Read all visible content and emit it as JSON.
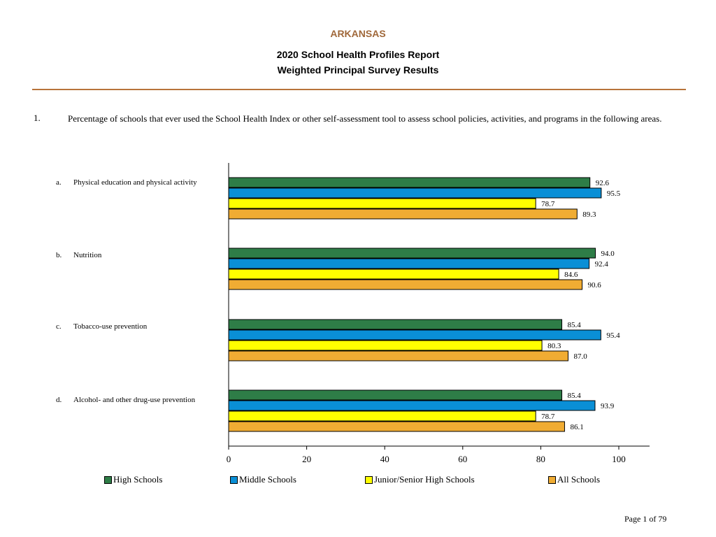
{
  "header": {
    "state": "ARKANSAS",
    "title_line1": "2020 School Health Profiles Report",
    "title_line2": "Weighted Principal Survey Results"
  },
  "question": {
    "number": "1.",
    "text": "Percentage of schools that ever used the School Health Index or other self-assessment tool to assess school policies, activities, and programs in the following areas."
  },
  "chart_data": {
    "type": "bar",
    "orientation": "horizontal",
    "categories": [
      {
        "letter": "a.",
        "label": "Physical education and physical activity"
      },
      {
        "letter": "b.",
        "label": "Nutrition"
      },
      {
        "letter": "c.",
        "label": "Tobacco-use prevention"
      },
      {
        "letter": "d.",
        "label": "Alcohol- and other drug-use prevention"
      }
    ],
    "series": [
      {
        "name": "High Schools",
        "color": "#2e7d47",
        "values": [
          92.6,
          94.0,
          85.4,
          85.4
        ]
      },
      {
        "name": "Middle Schools",
        "color": "#0a8fd6",
        "values": [
          95.5,
          92.4,
          95.4,
          93.9
        ]
      },
      {
        "name": "Junior/Senior High Schools",
        "color": "#ffff00",
        "values": [
          78.7,
          84.6,
          80.3,
          78.7
        ]
      },
      {
        "name": "All Schools",
        "color": "#f0ac33",
        "values": [
          89.3,
          90.6,
          87.0,
          86.1
        ]
      }
    ],
    "value_labels": [
      [
        "92.6",
        "95.5",
        "78.7",
        "89.3"
      ],
      [
        "94.0",
        "92.4",
        "84.6",
        "90.6"
      ],
      [
        "85.4",
        "95.4",
        "80.3",
        "87.0"
      ],
      [
        "85.4",
        "93.9",
        "78.7",
        "86.1"
      ]
    ],
    "xlim": [
      0,
      108
    ],
    "xticks": [
      0,
      20,
      40,
      60,
      80,
      100
    ],
    "title": "",
    "xlabel": "",
    "ylabel": "",
    "grid": false,
    "legend_position": "bottom"
  },
  "footer": {
    "page": "Page 1 of 79"
  }
}
